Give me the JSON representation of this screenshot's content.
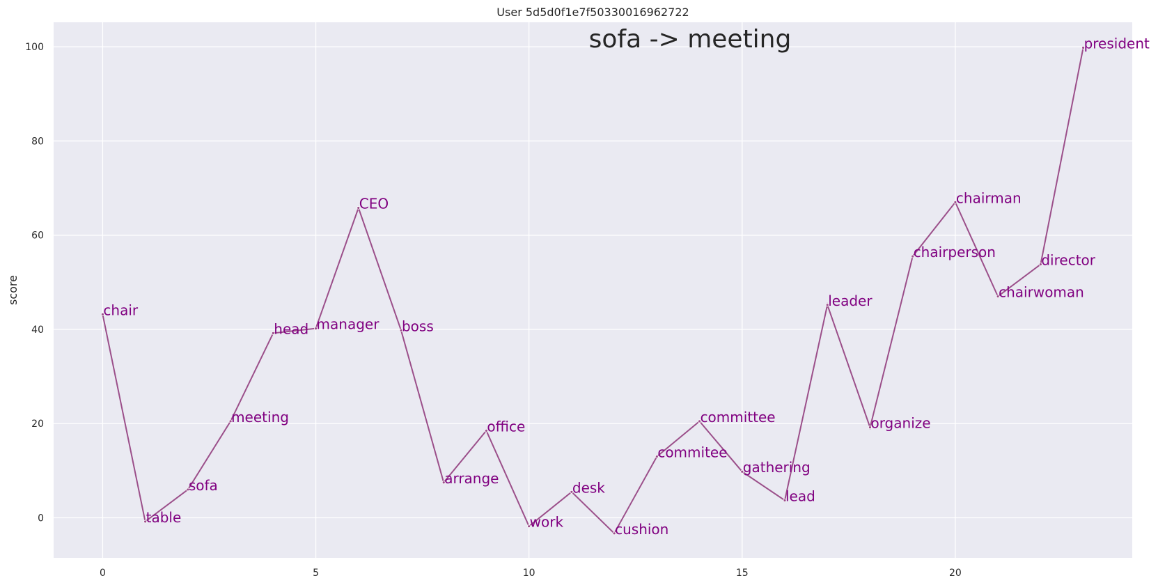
{
  "chart_data": {
    "type": "line",
    "title": "User 5d5d0f1e7f50330016962722",
    "annotation": "sofa -> meeting",
    "xlabel": "",
    "ylabel": "score",
    "xlim": [
      -1.15,
      24.15
    ],
    "ylim": [
      -8.5,
      105.2
    ],
    "xticks": [
      0,
      5,
      10,
      15,
      20
    ],
    "yticks": [
      0,
      20,
      40,
      60,
      80,
      100
    ],
    "grid": true,
    "legend": "none",
    "colors": {
      "background": "#eaeaf2",
      "grid": "#ffffff",
      "line": "#9b4f8a",
      "labels": "#800080"
    },
    "series": [
      {
        "points": [
          {
            "x": 0,
            "y": 43.2,
            "label": "chair"
          },
          {
            "x": 1,
            "y": -0.8,
            "label": "table"
          },
          {
            "x": 2,
            "y": 6.0,
            "label": "sofa"
          },
          {
            "x": 3,
            "y": 20.5,
            "label": "meeting"
          },
          {
            "x": 4,
            "y": 39.2,
            "label": "head"
          },
          {
            "x": 5,
            "y": 40.2,
            "label": "manager"
          },
          {
            "x": 6,
            "y": 65.8,
            "label": "CEO"
          },
          {
            "x": 7,
            "y": 39.8,
            "label": "boss"
          },
          {
            "x": 8,
            "y": 7.5,
            "label": "arrange"
          },
          {
            "x": 9,
            "y": 18.5,
            "label": "office"
          },
          {
            "x": 10,
            "y": -1.8,
            "label": "work"
          },
          {
            "x": 11,
            "y": 5.5,
            "label": "desk"
          },
          {
            "x": 12,
            "y": -3.3,
            "label": "cushion"
          },
          {
            "x": 13,
            "y": 13.0,
            "label": "commitee"
          },
          {
            "x": 14,
            "y": 20.5,
            "label": "committee"
          },
          {
            "x": 15,
            "y": 9.8,
            "label": "gathering"
          },
          {
            "x": 16,
            "y": 3.7,
            "label": "lead"
          },
          {
            "x": 17,
            "y": 45.2,
            "label": "leader"
          },
          {
            "x": 18,
            "y": 19.2,
            "label": "organize"
          },
          {
            "x": 19,
            "y": 55.5,
            "label": "chairperson"
          },
          {
            "x": 20,
            "y": 67.0,
            "label": "chairman"
          },
          {
            "x": 21,
            "y": 47.0,
            "label": "chairwoman"
          },
          {
            "x": 22,
            "y": 53.8,
            "label": "director"
          },
          {
            "x": 23,
            "y": 99.8,
            "label": "president"
          }
        ]
      }
    ]
  }
}
